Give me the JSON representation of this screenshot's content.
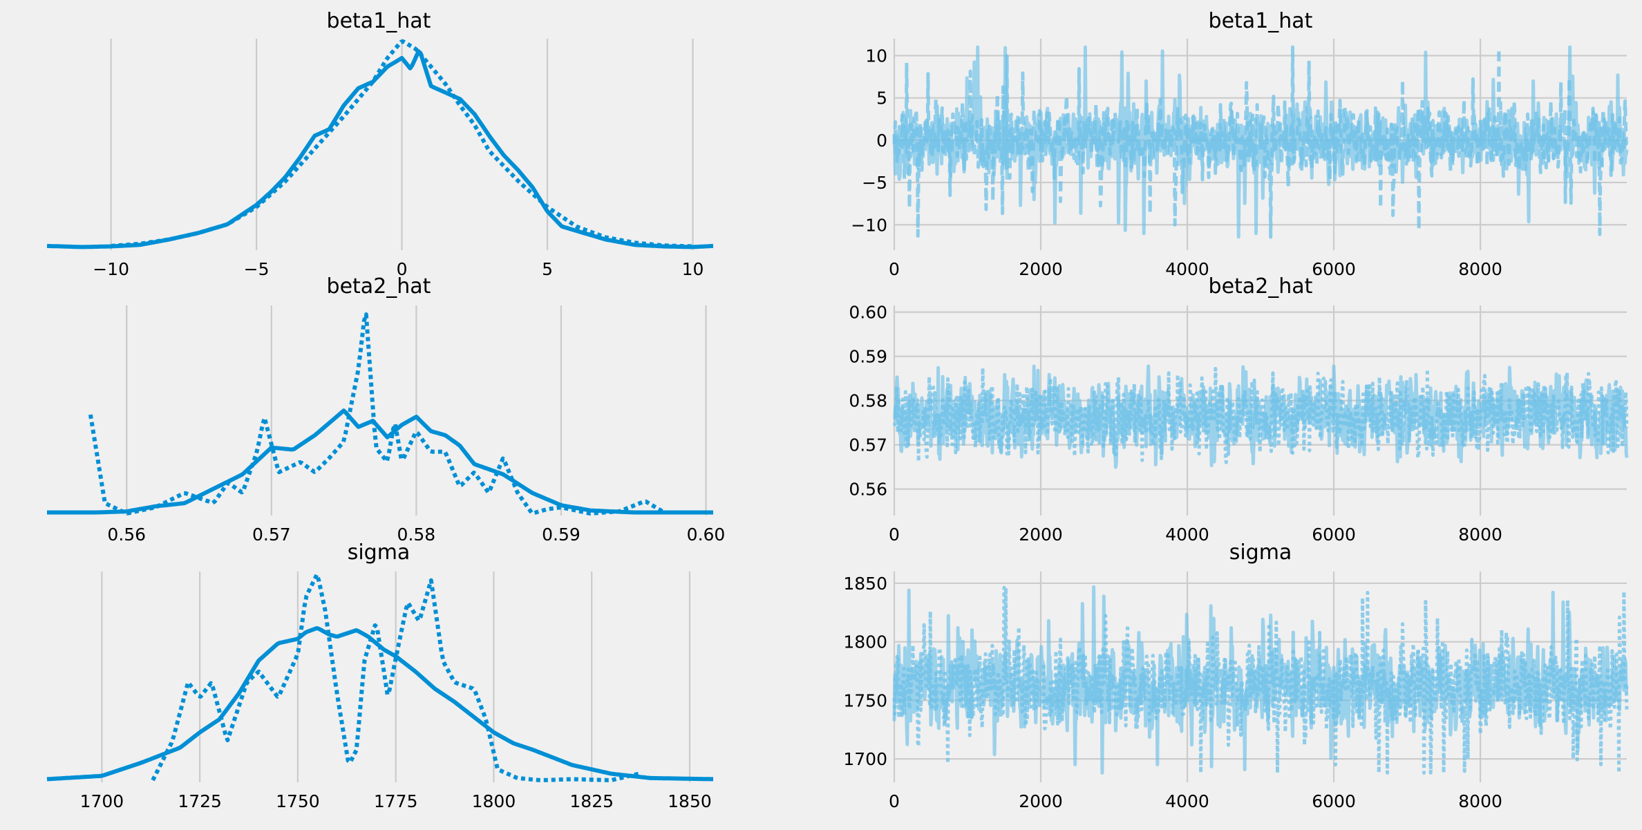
{
  "figure": {
    "background": "#f0f0f0",
    "line_color": "#008fd5",
    "trace_color": "#6cc0e8"
  },
  "chart_data": [
    {
      "type": "line",
      "kind": "kde",
      "title": "beta1_hat",
      "xlim": [
        -12.2,
        10.7
      ],
      "xticks": [
        -10,
        -5,
        0,
        5,
        10
      ],
      "xtick_labels": [
        "−10",
        "−5",
        "0",
        "5",
        "10"
      ],
      "grid": "vertical",
      "series": [
        {
          "style": "solid",
          "x": [
            -12.2,
            -11,
            -10,
            -9,
            -8,
            -7,
            -6,
            -5,
            -4.5,
            -4,
            -3.5,
            -3,
            -2.5,
            -2,
            -1.5,
            -1,
            -0.5,
            0,
            0.3,
            0.6,
            1,
            1.5,
            2,
            2.5,
            3,
            3.5,
            4,
            4.5,
            5,
            5.5,
            6,
            7,
            8,
            9,
            10,
            10.7
          ],
          "y": [
            0.01,
            0.005,
            0.008,
            0.015,
            0.04,
            0.07,
            0.11,
            0.2,
            0.26,
            0.33,
            0.42,
            0.52,
            0.55,
            0.66,
            0.74,
            0.77,
            0.84,
            0.88,
            0.83,
            0.92,
            0.75,
            0.72,
            0.69,
            0.62,
            0.52,
            0.43,
            0.36,
            0.28,
            0.17,
            0.1,
            0.08,
            0.04,
            0.015,
            0.008,
            0.005,
            0.01
          ]
        },
        {
          "style": "dotted",
          "x": [
            -10,
            -9,
            -8,
            -7,
            -6,
            -5,
            -4,
            -3,
            -2,
            -1,
            -0.5,
            0,
            0.5,
            1,
            1.5,
            2,
            2.5,
            3,
            4,
            5,
            6,
            7,
            8,
            9,
            10
          ],
          "y": [
            0.01,
            0.02,
            0.04,
            0.07,
            0.11,
            0.19,
            0.31,
            0.46,
            0.61,
            0.77,
            0.88,
            0.96,
            0.92,
            0.84,
            0.76,
            0.66,
            0.57,
            0.45,
            0.31,
            0.19,
            0.1,
            0.05,
            0.025,
            0.012,
            0.008
          ]
        }
      ]
    },
    {
      "type": "line",
      "kind": "trace",
      "title": "beta1_hat",
      "xlim": [
        0,
        9999
      ],
      "ylim": [
        -13,
        12
      ],
      "xticks": [
        0,
        2000,
        4000,
        6000,
        8000
      ],
      "xtick_labels": [
        "0",
        "2000",
        "4000",
        "6000",
        "8000"
      ],
      "yticks": [
        -10,
        -5,
        0,
        5,
        10
      ],
      "ytick_labels": [
        "−10",
        "−5",
        "0",
        "5",
        "10"
      ],
      "center": 0,
      "band": [
        -5,
        5
      ],
      "spread": 2.6,
      "outlier_range": [
        -12,
        11
      ],
      "series": [
        {
          "style": "solid"
        },
        {
          "style": "dashed"
        }
      ]
    },
    {
      "type": "line",
      "kind": "kde",
      "title": "beta2_hat",
      "xlim": [
        0.5545,
        0.6005
      ],
      "xticks": [
        0.56,
        0.57,
        0.58,
        0.59,
        0.6
      ],
      "xtick_labels": [
        "0.56",
        "0.57",
        "0.58",
        "0.59",
        "0.60"
      ],
      "grid": "vertical",
      "series": [
        {
          "style": "solid",
          "x": [
            0.5545,
            0.558,
            0.56,
            0.562,
            0.564,
            0.566,
            0.568,
            0.57,
            0.5715,
            0.573,
            0.575,
            0.576,
            0.577,
            0.578,
            0.579,
            0.58,
            0.581,
            0.582,
            0.583,
            0.584,
            0.586,
            0.588,
            0.59,
            0.592,
            0.595,
            0.6005
          ],
          "y": [
            0.005,
            0.005,
            0.01,
            0.035,
            0.05,
            0.12,
            0.19,
            0.32,
            0.31,
            0.38,
            0.5,
            0.42,
            0.45,
            0.37,
            0.43,
            0.47,
            0.4,
            0.38,
            0.33,
            0.24,
            0.19,
            0.1,
            0.04,
            0.015,
            0.005,
            0.005
          ]
        },
        {
          "style": "dotted",
          "x": [
            0.5575,
            0.5585,
            0.56,
            0.562,
            0.564,
            0.566,
            0.567,
            0.568,
            0.569,
            0.5695,
            0.5705,
            0.572,
            0.573,
            0.574,
            0.575,
            0.576,
            0.5765,
            0.5772,
            0.578,
            0.5785,
            0.579,
            0.58,
            0.581,
            0.582,
            0.583,
            0.584,
            0.585,
            0.586,
            0.587,
            0.588,
            0.589,
            0.59,
            0.592,
            0.594,
            0.5958,
            0.597
          ],
          "y": [
            0.48,
            0.05,
            0.0,
            0.03,
            0.1,
            0.05,
            0.15,
            0.1,
            0.3,
            0.47,
            0.2,
            0.25,
            0.2,
            0.27,
            0.35,
            0.7,
            1.0,
            0.32,
            0.25,
            0.45,
            0.25,
            0.4,
            0.3,
            0.3,
            0.13,
            0.2,
            0.1,
            0.27,
            0.1,
            0.0,
            0.02,
            0.03,
            0.0,
            0.01,
            0.06,
            0.01
          ]
        }
      ]
    },
    {
      "type": "line",
      "kind": "trace",
      "title": "beta2_hat",
      "xlim": [
        0,
        9999
      ],
      "ylim": [
        0.554,
        0.6015
      ],
      "xticks": [
        0,
        2000,
        4000,
        6000,
        8000
      ],
      "xtick_labels": [
        "0",
        "2000",
        "4000",
        "6000",
        "8000"
      ],
      "yticks": [
        0.56,
        0.57,
        0.58,
        0.59,
        0.6
      ],
      "ytick_labels": [
        "0.56",
        "0.57",
        "0.58",
        "0.59",
        "0.60"
      ],
      "center": 0.5765,
      "band": [
        0.57,
        0.58
      ],
      "spread": 0.0055,
      "outlier_range": [
        0.555,
        0.6
      ],
      "series": [
        {
          "style": "solid"
        },
        {
          "style": "dotted"
        }
      ]
    },
    {
      "type": "line",
      "kind": "kde",
      "title": "sigma",
      "xlim": [
        1686,
        1856
      ],
      "xticks": [
        1700,
        1725,
        1750,
        1775,
        1800,
        1825,
        1850
      ],
      "xtick_labels": [
        "1700",
        "1725",
        "1750",
        "1775",
        "1800",
        "1825",
        "1850"
      ],
      "grid": "vertical",
      "series": [
        {
          "style": "solid",
          "x": [
            1686,
            1700,
            1710,
            1720,
            1725,
            1730,
            1735,
            1740,
            1745,
            1750,
            1752,
            1755,
            1758,
            1760,
            1765,
            1768,
            1772,
            1775,
            1780,
            1785,
            1790,
            1795,
            1800,
            1805,
            1810,
            1820,
            1830,
            1840,
            1856
          ],
          "y": [
            0.005,
            0.02,
            0.08,
            0.15,
            0.22,
            0.28,
            0.4,
            0.55,
            0.63,
            0.65,
            0.68,
            0.7,
            0.67,
            0.66,
            0.69,
            0.66,
            0.6,
            0.57,
            0.5,
            0.42,
            0.36,
            0.29,
            0.22,
            0.17,
            0.14,
            0.07,
            0.03,
            0.01,
            0.005
          ]
        },
        {
          "style": "dotted",
          "x": [
            1713,
            1718,
            1722,
            1725,
            1728,
            1732,
            1737,
            1740,
            1745,
            1750,
            1752,
            1755,
            1757,
            1760,
            1763,
            1765,
            1767,
            1770,
            1773,
            1775,
            1778,
            1781,
            1784,
            1787,
            1790,
            1795,
            1798,
            1801,
            1806,
            1812,
            1820,
            1830,
            1837
          ],
          "y": [
            0.0,
            0.18,
            0.45,
            0.38,
            0.45,
            0.18,
            0.45,
            0.5,
            0.38,
            0.58,
            0.84,
            0.95,
            0.78,
            0.4,
            0.07,
            0.14,
            0.55,
            0.73,
            0.38,
            0.56,
            0.82,
            0.73,
            0.92,
            0.55,
            0.45,
            0.42,
            0.28,
            0.05,
            0.01,
            0.0,
            0.005,
            0.0,
            0.03
          ]
        }
      ]
    },
    {
      "type": "line",
      "kind": "trace",
      "title": "sigma",
      "xlim": [
        0,
        9999
      ],
      "ylim": [
        1680,
        1860
      ],
      "xticks": [
        0,
        2000,
        4000,
        6000,
        8000
      ],
      "xtick_labels": [
        "0",
        "2000",
        "4000",
        "6000",
        "8000"
      ],
      "yticks": [
        1700,
        1750,
        1800,
        1850
      ],
      "ytick_labels": [
        "1700",
        "1750",
        "1800",
        "1850"
      ],
      "center": 1762,
      "band": [
        1725,
        1800
      ],
      "spread": 24,
      "outlier_range": [
        1688,
        1858
      ],
      "series": [
        {
          "style": "solid"
        },
        {
          "style": "dotted"
        }
      ]
    }
  ]
}
